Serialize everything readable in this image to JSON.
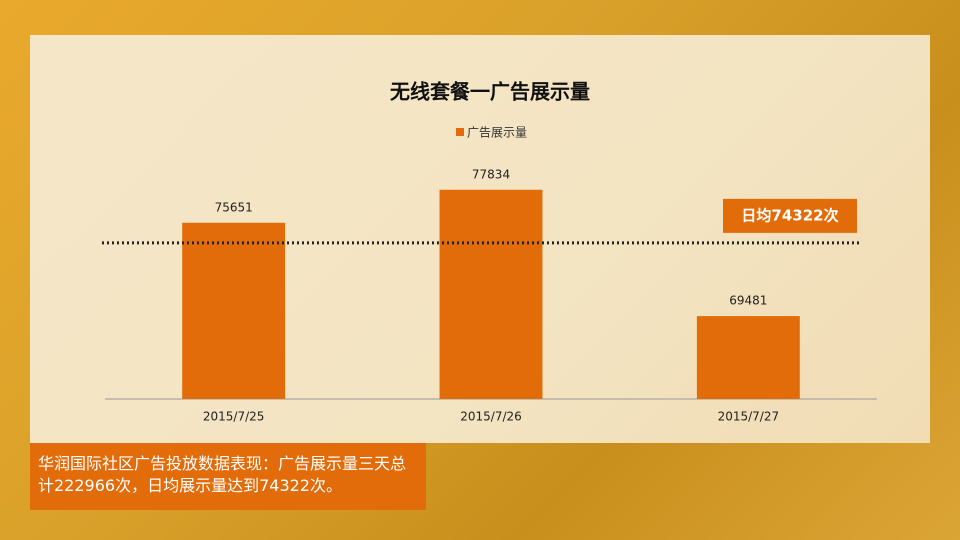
{
  "chart_data": {
    "type": "bar",
    "title": "无线套餐一广告展示量",
    "legend": "广告展示量",
    "color": "#e36c0a",
    "categories": [
      "2015/7/25",
      "2015/7/26",
      "2015/7/27"
    ],
    "values": [
      75651,
      77834,
      69481
    ],
    "ylim": [
      64000,
      80000
    ],
    "reference_value": 74322,
    "reference_label": "日均74322次"
  },
  "note": "华润国际社区广告投放数据表现：广告展示量三天总计222966次，日均展示量达到74322次。"
}
